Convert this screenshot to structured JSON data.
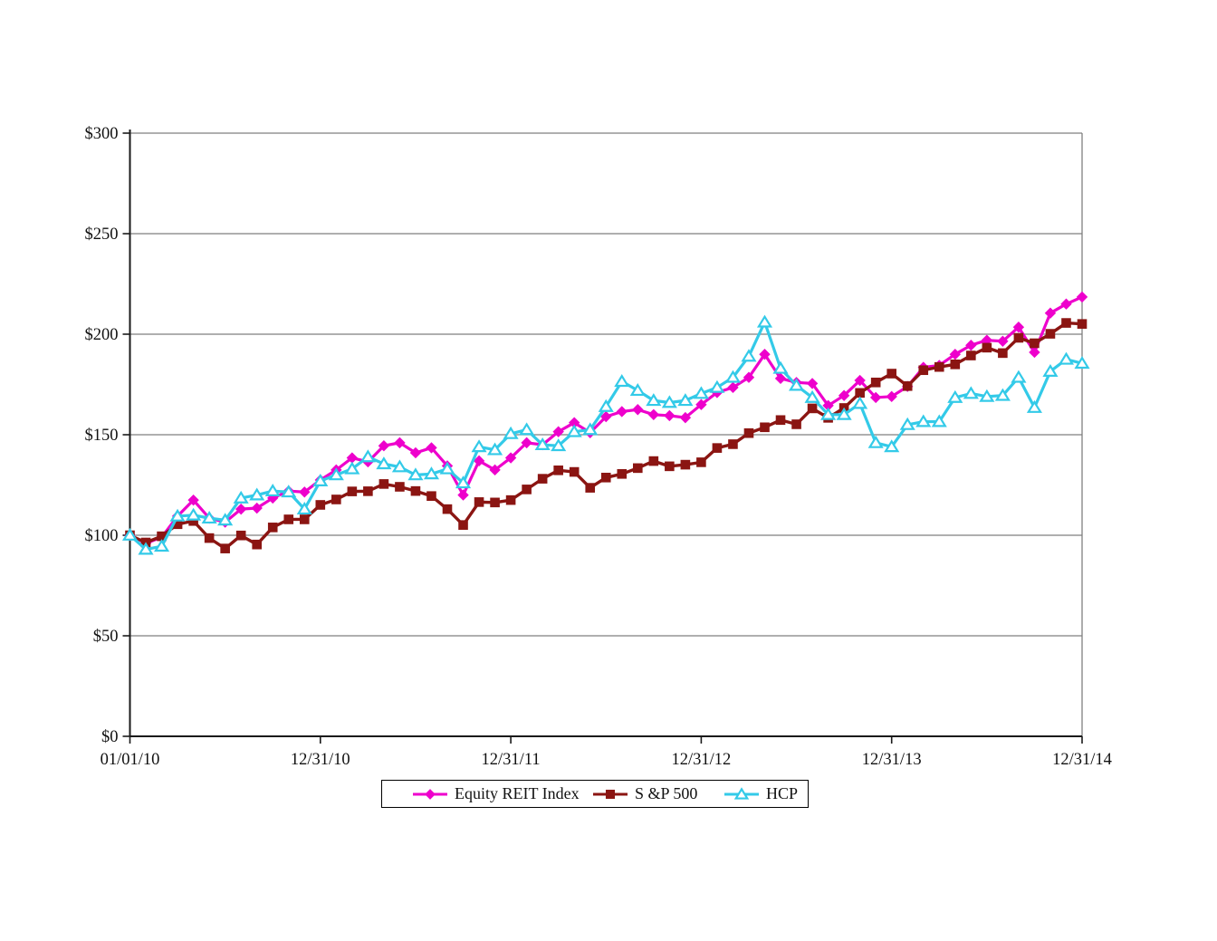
{
  "chart_data": {
    "type": "line",
    "title": "",
    "x_unit": "monthly",
    "months_total": 60,
    "x_tick_months": [
      0,
      12,
      24,
      36,
      48,
      60
    ],
    "x_tick_labels": [
      "01/01/10",
      "12/31/10",
      "12/31/11",
      "12/31/12",
      "12/31/13",
      "12/31/14"
    ],
    "y_axis": {
      "min": 0,
      "max": 300,
      "step": 50,
      "tick_labels": [
        "$0",
        "$50",
        "$100",
        "$150",
        "$200",
        "$250",
        "$300"
      ]
    },
    "grid": true,
    "legend_position": "bottom-center",
    "colors": {
      "grid": "#7f7f7f",
      "axis": "#1a1a1a",
      "background": "#ffffff"
    },
    "series": [
      {
        "id": "equity-reit-index",
        "name": "Equity REIT Index",
        "color": "#ee00cc",
        "marker": "diamond",
        "line_width": 3.2,
        "values": [
          100,
          96,
          99,
          109.5,
          117.5,
          108.5,
          106.5,
          113,
          113.5,
          118.5,
          122,
          121.5,
          127.5,
          132.5,
          138.5,
          136.5,
          144.5,
          146,
          141,
          143.5,
          134.5,
          120,
          137,
          132.5,
          138.5,
          146,
          145,
          151.5,
          156,
          151,
          159,
          161.5,
          162.5,
          160,
          159.5,
          158.5,
          165,
          171,
          173.5,
          178.5,
          190,
          178,
          176,
          175.5,
          164.5,
          169.5,
          177,
          168.5,
          169,
          174,
          183.5,
          184.5,
          190,
          194.5,
          197,
          196.5,
          203.5,
          191,
          210.5,
          215,
          218.5
        ]
      },
      {
        "id": "sp500",
        "name": "S &P 500",
        "color": "#8b1512",
        "marker": "square",
        "line_width": 3.4,
        "values": [
          100,
          96.4,
          99.5,
          105.5,
          107.1,
          98.6,
          93.4,
          99.9,
          95.4,
          103.9,
          107.9,
          107.9,
          115.1,
          117.8,
          121.8,
          121.9,
          125.5,
          124.1,
          122,
          119.5,
          113,
          105.1,
          116.5,
          116.3,
          117.5,
          122.8,
          128.1,
          132.3,
          131.5,
          123.6,
          128.7,
          130.5,
          133.4,
          136.9,
          134.3,
          135.1,
          136.3,
          143.4,
          145.3,
          150.8,
          153.7,
          157.3,
          155.2,
          163.1,
          158.4,
          163.3,
          170.8,
          176,
          180.4,
          174.2,
          182.1,
          183.7,
          185,
          189.4,
          193.3,
          190.6,
          198.2,
          195.5,
          200.2,
          205.6,
          205.1
        ]
      },
      {
        "id": "hcp",
        "name": "HCP",
        "color": "#33cae8",
        "marker": "triangle-open",
        "line_width": 3.2,
        "values": [
          100,
          93,
          94.5,
          109.5,
          110,
          108.5,
          107.5,
          118.5,
          120,
          122,
          121.5,
          113,
          127,
          130,
          133,
          139,
          135.5,
          134,
          130,
          130.5,
          133,
          126,
          144,
          142.5,
          150.5,
          152.5,
          145,
          144.5,
          151.5,
          152.5,
          164,
          176.5,
          172,
          167,
          166,
          167,
          170.5,
          173.5,
          178.5,
          189,
          206,
          183,
          174.5,
          168.5,
          160,
          160,
          165.5,
          146,
          144,
          155,
          156.5,
          156.5,
          168.5,
          170.5,
          169,
          169.5,
          178.5,
          163.5,
          181.5,
          187.5,
          185.5
        ]
      }
    ]
  }
}
